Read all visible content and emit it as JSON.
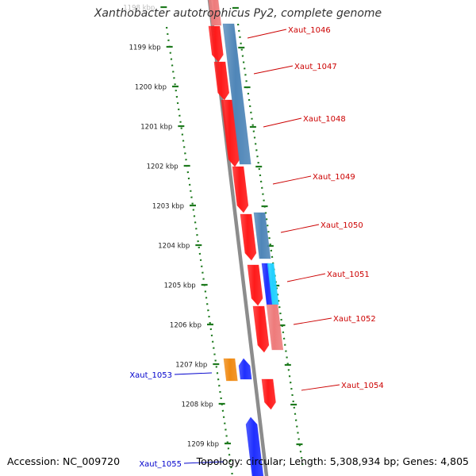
{
  "title": "Xanthobacter autotrophicus Py2, complete genome",
  "footer": {
    "accession": "Accession: NC_009720",
    "summary": "Topology: circular; Length: 5,308,934 bp; Genes: 4,805"
  },
  "colors": {
    "backbone": "#8c8c8c",
    "ruler_ticks": "#1e7a1e",
    "label_forward": "#cc0000",
    "label_reverse": "#0000cc",
    "gene_red": "#ff1a1a",
    "gene_steelblue": "#4f86b8",
    "gene_pink": "#ee7b7b",
    "gene_orange": "#f08a12",
    "gene_blue": "#1f2fff",
    "gene_cyan": "#22d0ff"
  },
  "ruler": [
    {
      "kbp": 1198,
      "label": "1198 kbp"
    },
    {
      "kbp": 1199,
      "label": "1199 kbp"
    },
    {
      "kbp": 1200,
      "label": "1200 kbp"
    },
    {
      "kbp": 1201,
      "label": "1201 kbp"
    },
    {
      "kbp": 1202,
      "label": "1202 kbp"
    },
    {
      "kbp": 1203,
      "label": "1203 kbp"
    },
    {
      "kbp": 1204,
      "label": "1204 kbp"
    },
    {
      "kbp": 1205,
      "label": "1205 kbp"
    },
    {
      "kbp": 1206,
      "label": "1206 kbp"
    },
    {
      "kbp": 1207,
      "label": "1207 kbp"
    },
    {
      "kbp": 1208,
      "label": "1208 kbp"
    },
    {
      "kbp": 1209,
      "label": "1209 kbp"
    }
  ],
  "genes": [
    {
      "label": "Xaut_1046",
      "strand": "forward"
    },
    {
      "label": "Xaut_1047",
      "strand": "forward"
    },
    {
      "label": "Xaut_1048",
      "strand": "forward"
    },
    {
      "label": "Xaut_1049",
      "strand": "forward"
    },
    {
      "label": "Xaut_1050",
      "strand": "forward"
    },
    {
      "label": "Xaut_1051",
      "strand": "forward"
    },
    {
      "label": "Xaut_1052",
      "strand": "forward"
    },
    {
      "label": "Xaut_1053",
      "strand": "reverse"
    },
    {
      "label": "Xaut_1054",
      "strand": "forward"
    },
    {
      "label": "Xaut_1055",
      "strand": "reverse"
    }
  ]
}
